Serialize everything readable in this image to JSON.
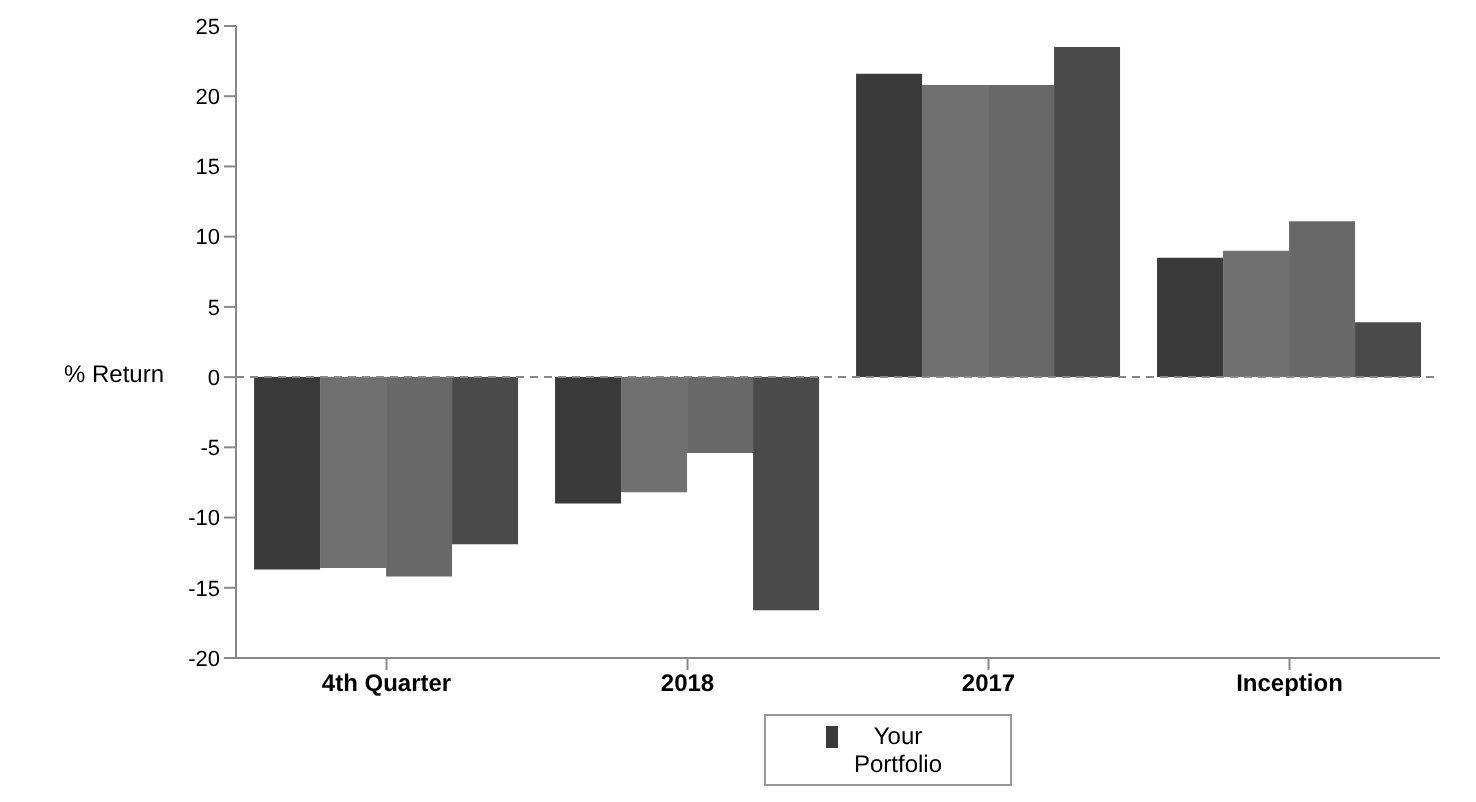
{
  "chart_data": {
    "type": "bar",
    "ylabel": "% Return",
    "categories": [
      "4th Quarter",
      "2018",
      "2017",
      "Inception"
    ],
    "series": [
      {
        "name": "Your Portfolio",
        "color": "#3a3a3a",
        "values": [
          -13.7,
          -9.0,
          21.6,
          8.5
        ]
      },
      {
        "color": "#707070",
        "values": [
          -13.6,
          -8.2,
          20.8,
          9.0
        ]
      },
      {
        "color": "#686868",
        "values": [
          -14.2,
          -5.4,
          20.8,
          11.1
        ]
      },
      {
        "color": "#4a4a4a",
        "values": [
          -11.9,
          -16.6,
          23.5,
          3.9
        ]
      }
    ],
    "ylim": [
      -20,
      25
    ],
    "yticks": [
      -20,
      -15,
      -10,
      -5,
      0,
      5,
      10,
      15,
      20,
      25
    ],
    "grid": false,
    "ref_lines": [
      {
        "axis": "y",
        "value": 0,
        "line_style": "dashed",
        "color": "#888888"
      }
    ],
    "legend": "bottom"
  }
}
